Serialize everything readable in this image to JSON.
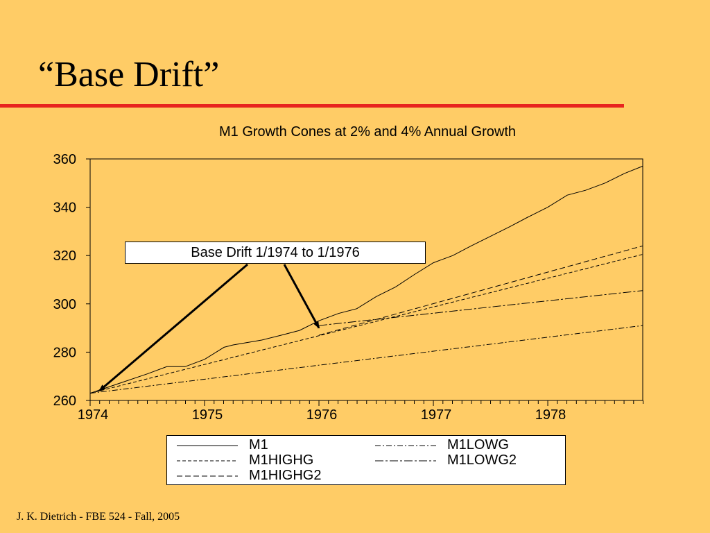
{
  "slide": {
    "title": "“Base Drift”",
    "footer": "J. K. Dietrich - FBE 524 - Fall, 2005"
  },
  "colors": {
    "background": "#FFCC66",
    "rule": "#E8231F",
    "line": "#000000"
  },
  "callout": {
    "text": "Base Drift 1/1974 to 1/1976"
  },
  "chart_data": {
    "type": "line",
    "title": "M1 Growth Cones at 2% and 4% Annual Growth",
    "xlabel": "",
    "ylabel": "",
    "xlim": [
      1974.0,
      1978.83
    ],
    "ylim": [
      260,
      360
    ],
    "yticks": [
      260,
      280,
      300,
      320,
      340,
      360
    ],
    "xtick_labels": [
      "1974",
      "1975",
      "1976",
      "1977",
      "1978"
    ],
    "xtick_positions": [
      1974.0,
      1975.0,
      1976.0,
      1977.0,
      1978.0
    ],
    "grid": false,
    "legend_position": "bottom",
    "series": [
      {
        "name": "M1",
        "dash": "",
        "x": [
          1974.0,
          1974.25,
          1974.5,
          1974.67,
          1974.83,
          1975.0,
          1975.17,
          1975.25,
          1975.5,
          1975.67,
          1975.83,
          1976.0,
          1976.17,
          1976.33,
          1976.5,
          1976.67,
          1976.83,
          1977.0,
          1977.17,
          1977.33,
          1977.5,
          1977.67,
          1977.83,
          1978.0,
          1978.17,
          1978.33,
          1978.5,
          1978.67,
          1978.83
        ],
        "y": [
          263,
          267,
          271,
          274,
          274,
          277,
          282,
          283,
          285,
          287,
          289,
          293,
          296,
          298,
          303,
          307,
          312,
          317,
          320,
          324,
          328,
          332,
          336,
          340,
          345,
          347,
          350,
          354,
          357
        ]
      },
      {
        "name": "M1HIGHG",
        "dash": "5,3",
        "x": [
          1974.0,
          1978.83
        ],
        "y": [
          263,
          320.5
        ]
      },
      {
        "name": "M1HIGHG2",
        "dash": "8,4",
        "x": [
          1976.0,
          1978.83
        ],
        "y": [
          287,
          324
        ]
      },
      {
        "name": "M1LOWG",
        "dash": "8,3,2,3",
        "x": [
          1974.0,
          1978.83
        ],
        "y": [
          263,
          291
        ]
      },
      {
        "name": "M1LOWG2",
        "dash": "12,3,3,3",
        "x": [
          1976.0,
          1978.83
        ],
        "y": [
          291,
          305.5
        ]
      }
    ],
    "annotations": [
      {
        "text": "Base Drift 1/1974 to 1/1976",
        "arrows_to": [
          [
            1974.08,
            264
          ],
          [
            1976.0,
            290
          ]
        ]
      }
    ]
  }
}
